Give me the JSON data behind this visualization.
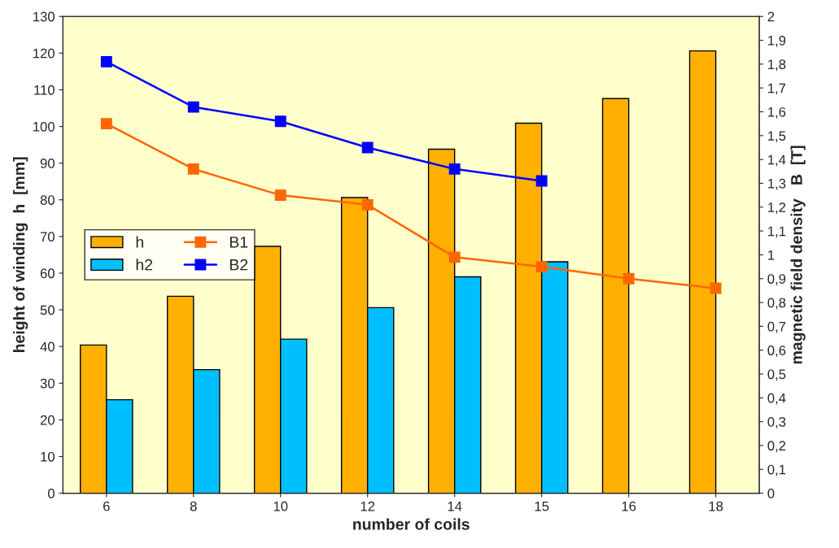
{
  "chart_data": {
    "type": "bar",
    "xlabel": "number of coils",
    "ylabel": "height of winding  h  [mm]",
    "y2label": "magnetic field density   B  [T]",
    "categories": [
      "6",
      "8",
      "10",
      "12",
      "14",
      "15",
      "16",
      "18"
    ],
    "series": [
      {
        "name": "h",
        "color": "#ffb000",
        "values": [
          40.4,
          53.7,
          67.3,
          80.6,
          93.8,
          100.9,
          107.6,
          120.6
        ]
      },
      {
        "name": "h2",
        "color": "#00bfff",
        "values": [
          25.5,
          33.7,
          42.0,
          50.6,
          59.0,
          63.1,
          null,
          null
        ]
      },
      {
        "name": "B1",
        "type": "line",
        "axis": "y2",
        "color": "#ff6600",
        "values": [
          1.55,
          1.36,
          1.25,
          1.21,
          0.99,
          0.95,
          0.9,
          0.86
        ]
      },
      {
        "name": "B2",
        "type": "line",
        "axis": "y2",
        "color": "#0000ff",
        "values": [
          1.81,
          1.62,
          1.56,
          1.45,
          1.36,
          1.31,
          null,
          null
        ]
      }
    ],
    "ylim": [
      0,
      130
    ],
    "yticks": [
      0,
      10,
      20,
      30,
      40,
      50,
      60,
      70,
      80,
      90,
      100,
      110,
      120,
      130
    ],
    "y2lim": [
      0,
      2
    ],
    "y2ticks": [
      0,
      {
        "value": 0.1,
        "label": "0,1"
      },
      {
        "value": 0.2,
        "label": "0,2"
      },
      {
        "value": 0.3,
        "label": "0,3"
      },
      {
        "value": 0.4,
        "label": "0,4"
      },
      {
        "value": 0.5,
        "label": "0,5"
      },
      {
        "value": 0.6,
        "label": "0,6"
      },
      {
        "value": 0.7,
        "label": "0,7"
      },
      {
        "value": 0.8,
        "label": "0,8"
      },
      {
        "value": 0.9,
        "label": "0,9"
      },
      1,
      {
        "value": 1.1,
        "label": "1,1"
      },
      {
        "value": 1.2,
        "label": "1,2"
      },
      {
        "value": 1.3,
        "label": "1,3"
      },
      {
        "value": 1.4,
        "label": "1,4"
      },
      {
        "value": 1.5,
        "label": "1,5"
      },
      {
        "value": 1.6,
        "label": "1,6"
      },
      {
        "value": 1.7,
        "label": "1,7"
      },
      {
        "value": 1.8,
        "label": "1,8"
      },
      {
        "value": 1.9,
        "label": "1,9"
      },
      2
    ],
    "marker": "square",
    "line_style": "solid",
    "grid": false,
    "legend": "center left"
  }
}
